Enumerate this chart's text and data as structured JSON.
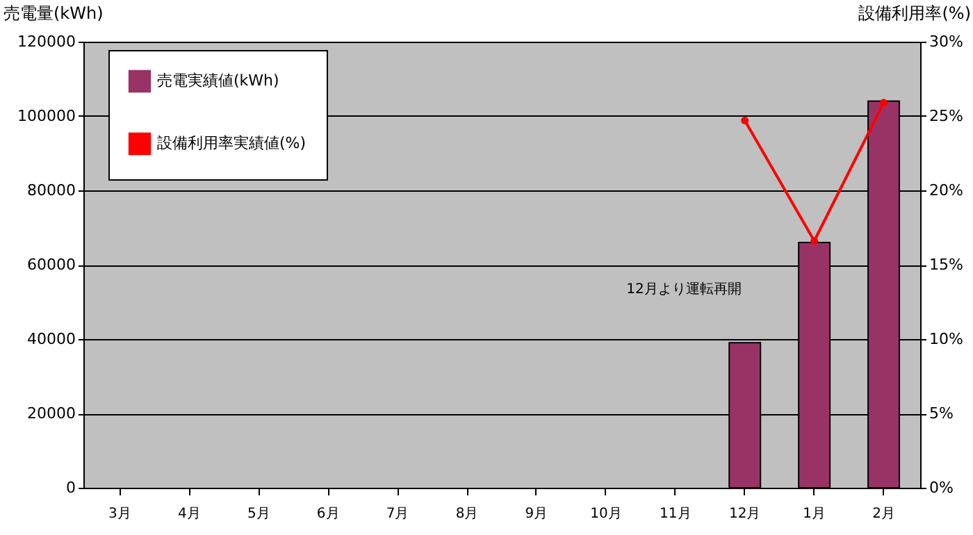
{
  "chart_data": {
    "type": "bar",
    "categories": [
      "3月",
      "4月",
      "5月",
      "6月",
      "7月",
      "8月",
      "9月",
      "10月",
      "11月",
      "12月",
      "1月",
      "2月"
    ],
    "ylabel": "売電量(kWh)",
    "y2label": "設備利用率(%)",
    "series": [
      {
        "name": "売電実績値(kWh)",
        "color": "#993366",
        "values": [
          null,
          null,
          null,
          null,
          null,
          null,
          null,
          null,
          null,
          39000,
          66000,
          104000
        ]
      },
      {
        "name": "設備利用率実績値(%)",
        "type": "line",
        "axis": "y2",
        "color": "#ff0000",
        "marker": "circle",
        "values": [
          null,
          null,
          null,
          null,
          null,
          null,
          null,
          null,
          null,
          24.7,
          16.6,
          25.9
        ]
      }
    ],
    "ylim": [
      0,
      120000
    ],
    "yticks": [
      0,
      20000,
      40000,
      60000,
      80000,
      100000,
      120000
    ],
    "y2lim": [
      0,
      30
    ],
    "y2ticks": [
      {
        "value": 0,
        "label": "0%"
      },
      {
        "value": 5,
        "label": "5%"
      },
      {
        "value": 10,
        "label": "10%"
      },
      {
        "value": 15,
        "label": "15%"
      },
      {
        "value": 20,
        "label": "20%"
      },
      {
        "value": 25,
        "label": "25%"
      },
      {
        "value": 30,
        "label": "30%"
      }
    ],
    "grid": "y",
    "legend": "top left",
    "annotations": [
      "12月より運転再開"
    ]
  }
}
